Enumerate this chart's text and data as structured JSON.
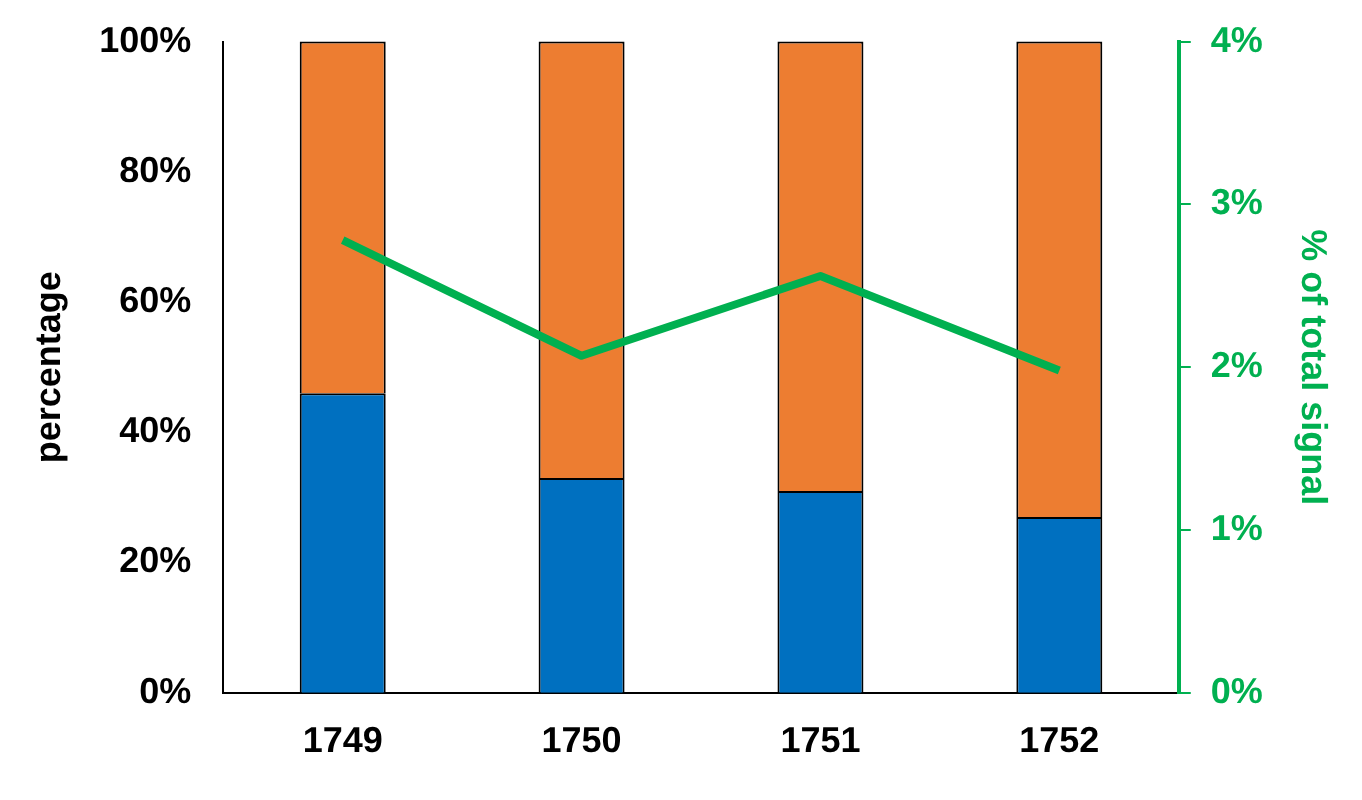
{
  "chart_data": {
    "type": "bar",
    "stacked": true,
    "categories": [
      "1749",
      "1750",
      "1751",
      "1752"
    ],
    "ylabel": "percentage",
    "y2label": "% of total signal",
    "ylim": [
      0,
      100
    ],
    "yticks": [
      {
        "value": 0,
        "label": "0%"
      },
      {
        "value": 20,
        "label": "20%"
      },
      {
        "value": 40,
        "label": "40%"
      },
      {
        "value": 60,
        "label": "60%"
      },
      {
        "value": 80,
        "label": "80%"
      },
      {
        "value": 100,
        "label": "100%"
      }
    ],
    "y2lim": [
      0,
      4
    ],
    "y2ticks": [
      {
        "value": 0,
        "label": "0%"
      },
      {
        "value": 1,
        "label": "1%"
      },
      {
        "value": 2,
        "label": "2%"
      },
      {
        "value": 3,
        "label": "3%"
      },
      {
        "value": 4,
        "label": "4%"
      }
    ],
    "grid": false,
    "legend": false,
    "marker": "none",
    "line_style": "solid",
    "series": [
      {
        "color": "#0070c0",
        "values": [
          46,
          33,
          31,
          27
        ]
      },
      {
        "color": "#ed7d31",
        "values": [
          54,
          67,
          69,
          73
        ]
      },
      {
        "type": "line",
        "axis": "y2",
        "color": "#00b050",
        "values": [
          2.78,
          2.07,
          2.56,
          1.98
        ]
      }
    ]
  }
}
